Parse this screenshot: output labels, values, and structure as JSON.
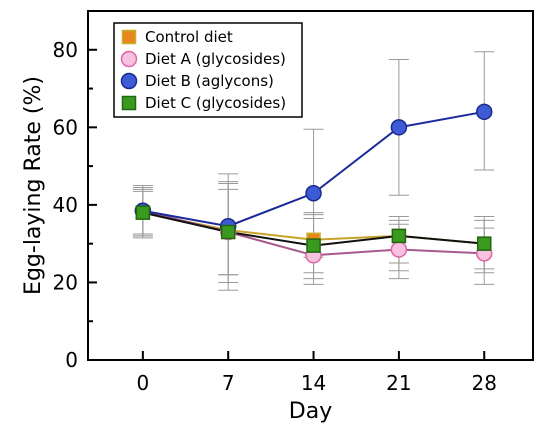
{
  "chart_data": {
    "type": "line",
    "xlabel": "Day",
    "ylabel": "Egg-laying Rate (%)",
    "x": [
      0,
      7,
      14,
      21,
      28
    ],
    "xlim": [
      -4.5,
      32
    ],
    "ylim": [
      0,
      90
    ],
    "xticks": [
      0,
      7,
      14,
      21,
      28
    ],
    "yticks": [
      0,
      20,
      40,
      60,
      80
    ],
    "yminor": [
      10,
      30,
      50,
      70
    ],
    "grid": false,
    "legend_position": "top-left",
    "series": [
      {
        "name": "Control diet",
        "marker": "square",
        "line_color": "#c9a227",
        "marker_fill": "#e8861e",
        "marker_edge": "#c9b02a",
        "values": [
          38,
          33.5,
          31,
          32,
          30
        ],
        "err_high": [
          44.5,
          44,
          38,
          37,
          37
        ],
        "err_low": [
          32,
          22,
          22.5,
          25,
          22.5
        ]
      },
      {
        "name": "Diet A (glycosides)",
        "marker": "circle",
        "line_color": "#a8588e",
        "marker_fill": "#f7c2e0",
        "marker_edge": "#e066a8",
        "values": [
          38.5,
          33,
          27,
          28.5,
          27.5
        ],
        "err_high": [
          44,
          46,
          36.5,
          36,
          34
        ],
        "err_low": [
          31.5,
          18,
          19.5,
          21,
          19.5
        ]
      },
      {
        "name": "Diet B (aglycons)",
        "marker": "circle",
        "line_color": "#1a2a9a",
        "marker_fill": "#3d5bd6",
        "marker_edge": "#1a2a8a",
        "values": [
          38.5,
          34.5,
          43,
          60,
          64
        ],
        "err_high": [
          45,
          48,
          59.5,
          77.5,
          79.5
        ],
        "err_low": [
          32,
          22,
          26.5,
          42.5,
          49
        ]
      },
      {
        "name": "Diet C (glycosides)",
        "marker": "square",
        "line_color": "#111111",
        "marker_fill": "#3a9a20",
        "marker_edge": "#226610",
        "values": [
          38,
          33,
          29.5,
          32,
          30
        ],
        "err_high": [
          43.5,
          45.5,
          37.5,
          35,
          36
        ],
        "err_low": [
          32.5,
          20,
          21,
          23,
          23.5
        ]
      }
    ]
  }
}
